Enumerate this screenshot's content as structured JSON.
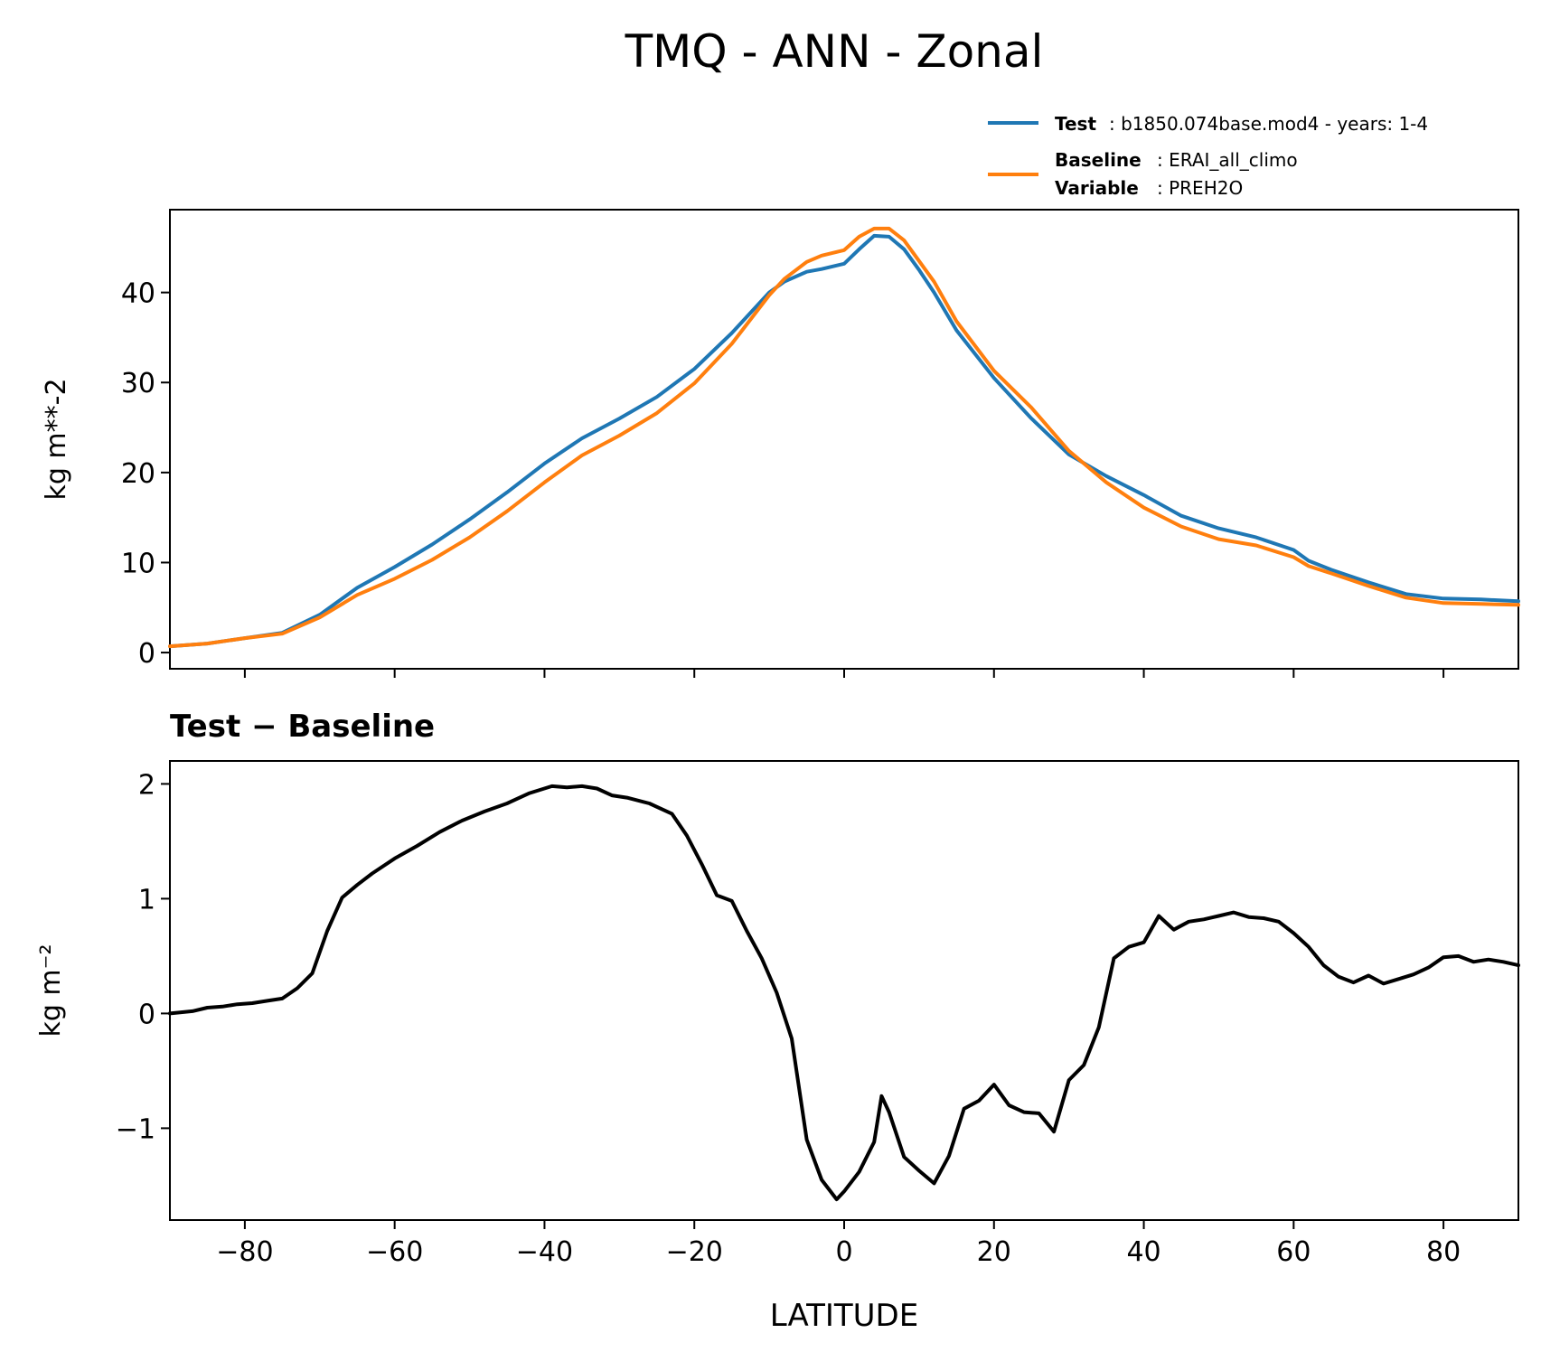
{
  "figure": {
    "title": "TMQ - ANN - Zonal"
  },
  "legend": {
    "test_label": "Test",
    "test_value": ": b1850.074base.mod4 - years: 1-4",
    "baseline_label": "Baseline",
    "baseline_value": ": ERAI_all_climo",
    "variable_label": "Variable",
    "variable_value": ": PREH2O"
  },
  "colors": {
    "test": "#1f77b4",
    "baseline": "#ff7f0e",
    "diff": "#000000"
  },
  "chart_data": [
    {
      "type": "line",
      "panel": "top",
      "title": "",
      "xlabel": "",
      "ylabel": "kg m**-2",
      "xlim": [
        -90,
        90
      ],
      "ylim": [
        -1.8,
        49.2
      ],
      "xticks": [
        -80,
        -60,
        -40,
        -20,
        0,
        20,
        40,
        60,
        80
      ],
      "yticks": [
        0,
        10,
        20,
        30,
        40
      ],
      "ytick_labels": [
        "0",
        "10",
        "20",
        "30",
        "40"
      ],
      "legend_position": "above-right",
      "x": [
        -90,
        -85,
        -80,
        -75,
        -70,
        -65,
        -60,
        -55,
        -50,
        -45,
        -40,
        -35,
        -30,
        -25,
        -20,
        -15,
        -10,
        -8,
        -5,
        -3,
        0,
        2,
        4,
        6,
        8,
        10,
        12,
        15,
        20,
        25,
        30,
        35,
        40,
        45,
        50,
        55,
        60,
        62,
        65,
        70,
        75,
        80,
        85,
        90
      ],
      "series": [
        {
          "name": "Test",
          "values": [
            0.7,
            1.0,
            1.6,
            2.2,
            4.2,
            7.2,
            9.5,
            12.0,
            14.8,
            17.8,
            21.0,
            23.8,
            26.0,
            28.4,
            31.5,
            35.5,
            40.0,
            41.2,
            42.3,
            42.6,
            43.2,
            44.8,
            46.3,
            46.2,
            44.8,
            42.5,
            40.0,
            35.8,
            30.5,
            26.0,
            22.0,
            19.6,
            17.5,
            15.2,
            13.8,
            12.8,
            11.4,
            10.2,
            9.2,
            7.8,
            6.5,
            6.0,
            5.9,
            5.7
          ]
        },
        {
          "name": "Baseline",
          "values": [
            0.7,
            1.0,
            1.6,
            2.1,
            3.9,
            6.4,
            8.2,
            10.3,
            12.8,
            15.7,
            18.9,
            21.9,
            24.1,
            26.6,
            29.9,
            34.3,
            39.7,
            41.5,
            43.4,
            44.1,
            44.7,
            46.2,
            47.1,
            47.1,
            45.8,
            43.5,
            41.2,
            36.8,
            31.3,
            27.2,
            22.4,
            18.9,
            16.1,
            14.0,
            12.6,
            11.9,
            10.6,
            9.6,
            8.8,
            7.4,
            6.1,
            5.5,
            5.4,
            5.3
          ]
        }
      ]
    },
    {
      "type": "line",
      "panel": "bottom",
      "title": "Test − Baseline",
      "xlabel": "LATITUDE",
      "ylabel": "kg m⁻²",
      "xlim": [
        -90,
        90
      ],
      "ylim": [
        -1.8,
        2.2
      ],
      "xticks": [
        -80,
        -60,
        -40,
        -20,
        0,
        20,
        40,
        60,
        80
      ],
      "xtick_labels": [
        "−80",
        "−60",
        "−40",
        "−20",
        "0",
        "20",
        "40",
        "60",
        "80"
      ],
      "yticks": [
        -1,
        0,
        1,
        2
      ],
      "ytick_labels": [
        "−1",
        "0",
        "1",
        "2"
      ],
      "x": [
        -90,
        -87,
        -85,
        -83,
        -81,
        -79,
        -77,
        -75,
        -73,
        -71,
        -69,
        -67,
        -65,
        -63,
        -60,
        -57,
        -54,
        -51,
        -48,
        -45,
        -42,
        -39,
        -37,
        -35,
        -33,
        -31,
        -29,
        -26,
        -23,
        -21,
        -19,
        -17,
        -15,
        -13,
        -11,
        -9,
        -7,
        -5,
        -3,
        -1,
        0,
        2,
        4,
        5,
        6,
        8,
        10,
        12,
        14,
        16,
        18,
        20,
        22,
        24,
        26,
        28,
        30,
        32,
        34,
        36,
        38,
        40,
        42,
        44,
        46,
        48,
        50,
        52,
        54,
        56,
        58,
        60,
        62,
        64,
        66,
        68,
        70,
        72,
        74,
        76,
        78,
        80,
        82,
        84,
        86,
        88,
        90
      ],
      "series": [
        {
          "name": "Test − Baseline",
          "values": [
            0.0,
            0.02,
            0.05,
            0.06,
            0.08,
            0.09,
            0.11,
            0.13,
            0.22,
            0.35,
            0.72,
            1.01,
            1.12,
            1.22,
            1.35,
            1.46,
            1.58,
            1.68,
            1.76,
            1.83,
            1.92,
            1.98,
            1.97,
            1.98,
            1.96,
            1.9,
            1.88,
            1.83,
            1.74,
            1.55,
            1.3,
            1.03,
            0.98,
            0.72,
            0.48,
            0.18,
            -0.22,
            -1.1,
            -1.45,
            -1.62,
            -1.55,
            -1.38,
            -1.12,
            -0.72,
            -0.86,
            -1.25,
            -1.37,
            -1.48,
            -1.24,
            -0.83,
            -0.76,
            -0.62,
            -0.8,
            -0.86,
            -0.87,
            -1.03,
            -0.58,
            -0.45,
            -0.12,
            0.48,
            0.58,
            0.62,
            0.85,
            0.73,
            0.8,
            0.82,
            0.85,
            0.88,
            0.84,
            0.83,
            0.8,
            0.7,
            0.58,
            0.42,
            0.32,
            0.27,
            0.33,
            0.26,
            0.3,
            0.34,
            0.4,
            0.49,
            0.5,
            0.45,
            0.47,
            0.45,
            0.42
          ]
        }
      ]
    }
  ]
}
